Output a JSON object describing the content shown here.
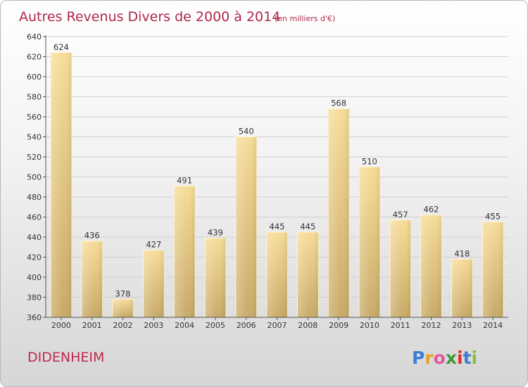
{
  "chart_data": {
    "type": "bar",
    "title": "Autres Revenus Divers de 2000 à 2014",
    "subtitle": "(en milliers d'€)",
    "categories": [
      "2000",
      "2001",
      "2002",
      "2003",
      "2004",
      "2005",
      "2006",
      "2007",
      "2008",
      "2009",
      "2010",
      "2011",
      "2012",
      "2013",
      "2014"
    ],
    "values": [
      624,
      436,
      378,
      427,
      491,
      439,
      540,
      445,
      445,
      568,
      510,
      457,
      462,
      418,
      455
    ],
    "ylim": [
      360,
      640
    ],
    "yticks": [
      360,
      380,
      400,
      420,
      440,
      460,
      480,
      500,
      520,
      540,
      560,
      580,
      600,
      620,
      640
    ],
    "grid": true,
    "bar_color": "#e8cc84"
  },
  "place_name": "DIDENHEIM",
  "logo": {
    "letters": [
      "P",
      "r",
      "o",
      "x",
      "i",
      "t",
      "i"
    ],
    "colors": [
      "#3a7fd4",
      "#e8a020",
      "#e05a9a",
      "#3a9a3a",
      "#e0302a",
      "#3a7fd4",
      "#8ac030"
    ]
  }
}
